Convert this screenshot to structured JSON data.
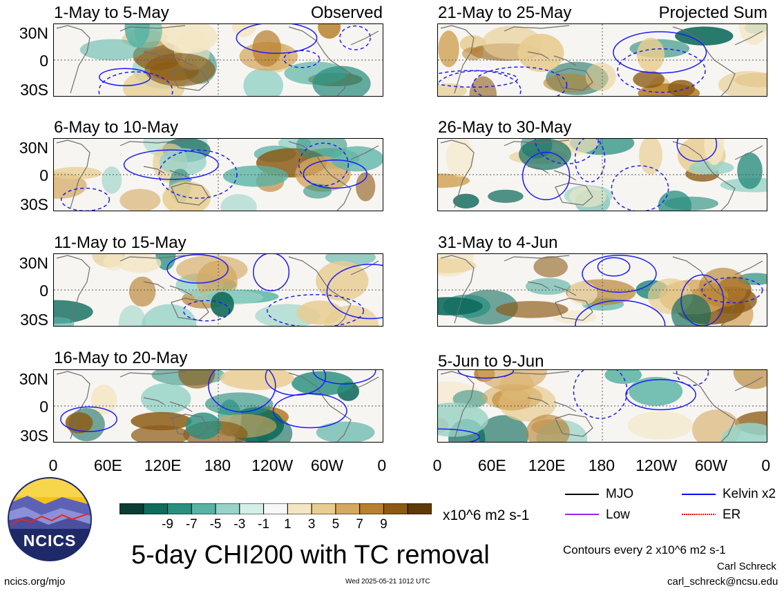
{
  "title": "5-day CHI200 with TC removal",
  "columns": {
    "left_label": "Observed",
    "right_label": "Projected Sum"
  },
  "panels": [
    {
      "title": "1-May to 5-May"
    },
    {
      "title": "6-May to 10-May"
    },
    {
      "title": "11-May to 15-May"
    },
    {
      "title": "16-May to 20-May"
    },
    {
      "title": "21-May to 25-May"
    },
    {
      "title": "26-May to 30-May"
    },
    {
      "title": "31-May to 4-Jun"
    },
    {
      "title": "5-Jun to 9-Jun"
    }
  ],
  "lat_labels": [
    "30N",
    "0",
    "30S"
  ],
  "lon_labels": [
    "0",
    "60E",
    "120E",
    "180",
    "120W",
    "60W",
    "0"
  ],
  "colorbar": {
    "unit": "x10^6 m2 s-1",
    "ticks": [
      "-9",
      "-7",
      "-5",
      "-3",
      "-1",
      "1",
      "3",
      "5",
      "7",
      "9"
    ],
    "colors": [
      "#0a3d33",
      "#0f6b5c",
      "#2a8f80",
      "#58b3a5",
      "#97d3c8",
      "#d6eee8",
      "#f7f7f7",
      "#f4e6c4",
      "#e8cd92",
      "#d4a860",
      "#b8812f",
      "#8c5a14",
      "#5e3a08"
    ]
  },
  "legend": {
    "items": [
      {
        "label": "MJO",
        "color": "#000000"
      },
      {
        "label": "Kelvin x2",
        "color": "#0000ff"
      },
      {
        "label": "Low",
        "color": "#a020f0"
      },
      {
        "label": "ER",
        "color": "#ff0000"
      }
    ],
    "contour_note": "Contours every 2 x10^6 m2 s-1"
  },
  "credits": {
    "logo_text": "NCICS",
    "site": "ncics.org/mjo",
    "timestamp": "Wed 2025-05-21 1012 UTC",
    "author": "Carl Schreck",
    "email": "carl_schreck@ncsu.edu"
  }
}
